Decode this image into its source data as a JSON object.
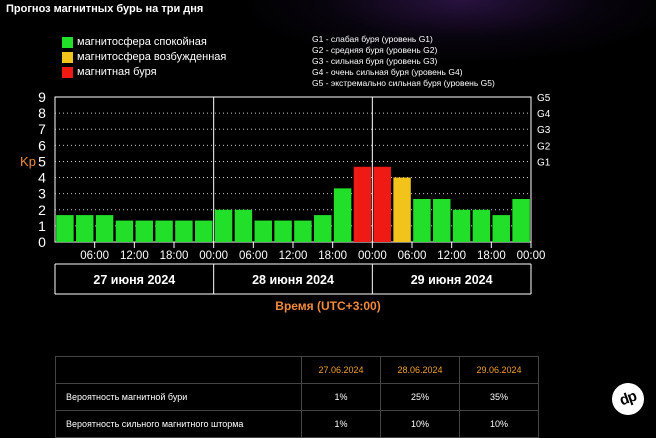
{
  "page": {
    "title": "Прогноз магнитных бурь на три дня",
    "time_axis_label": "Время (UTC+3:00)",
    "watermark": "dp"
  },
  "legend": [
    {
      "label": "магнитосфера спокойная",
      "color": "#22e02a"
    },
    {
      "label": "магнитосфера возбужденная",
      "color": "#f2c31b"
    },
    {
      "label": "магнитная буря",
      "color": "#ef1a14"
    }
  ],
  "storm_levels": [
    "G1 - слабая буря (уровень G1)",
    "G2 - средняя буря (уровень G2)",
    "G3 - сильная буря (уровень G3)",
    "G4 - очень сильная буря (уровень G4)",
    "G5 - экстремально сильная буря (уровень G5)"
  ],
  "chart_data": {
    "type": "bar",
    "ylabel": "Kp",
    "ylim": [
      0,
      9
    ],
    "yticks": [
      0,
      1,
      2,
      3,
      4,
      5,
      6,
      7,
      8,
      9
    ],
    "right_ticks": [
      {
        "kp": 5,
        "label": "G1"
      },
      {
        "kp": 6,
        "label": "G2"
      },
      {
        "kp": 7,
        "label": "G3"
      },
      {
        "kp": 8,
        "label": "G4"
      },
      {
        "kp": 9,
        "label": "G5"
      }
    ],
    "grid": true,
    "days": [
      "27 июня 2024",
      "28 июня 2024",
      "29 июня 2024"
    ],
    "time_ticks": [
      "06:00",
      "12:00",
      "18:00",
      "00:00",
      "06:00",
      "12:00",
      "18:00",
      "00:00",
      "06:00",
      "12:00",
      "18:00",
      "00:00"
    ],
    "values": [
      1.67,
      1.67,
      1.67,
      1.33,
      1.33,
      1.33,
      1.33,
      1.33,
      2.0,
      2.0,
      1.33,
      1.33,
      1.33,
      1.67,
      3.33,
      4.67,
      4.67,
      4.0,
      2.67,
      2.67,
      2.0,
      2.0,
      1.67,
      2.67
    ],
    "categories": [
      "quiet",
      "quiet",
      "quiet",
      "quiet",
      "quiet",
      "quiet",
      "quiet",
      "quiet",
      "quiet",
      "quiet",
      "quiet",
      "quiet",
      "quiet",
      "quiet",
      "quiet",
      "storm",
      "storm",
      "active",
      "quiet",
      "quiet",
      "quiet",
      "quiet",
      "quiet",
      "quiet"
    ],
    "colors": {
      "quiet": "#22e02a",
      "active": "#f2c31b",
      "storm": "#ef1a14"
    }
  },
  "table": {
    "headers": [
      "27.06.2024",
      "28.06.2024",
      "29.06.2024"
    ],
    "rows": [
      {
        "label": "Вероятность магнитной бури",
        "values": [
          "1%",
          "25%",
          "35%"
        ]
      },
      {
        "label": "Вероятность сильного магнитного шторма",
        "values": [
          "1%",
          "10%",
          "10%"
        ]
      }
    ]
  }
}
